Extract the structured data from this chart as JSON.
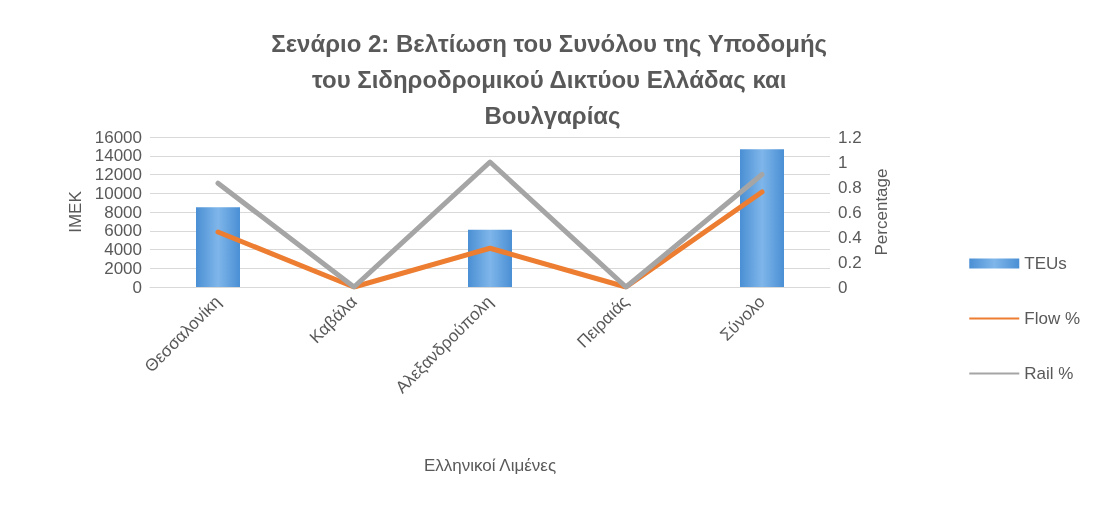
{
  "chart_data": {
    "type": "bar",
    "title": "Σενάριο 2: Βελτίωση του Συνόλου της Υποδομής του Σιδηροδρομικού Δικτύου Ελλάδας και Βουλγαρίας",
    "xlabel": "Ελληνικοί Λιμένες",
    "ylabel": "ΙΜΕΚ",
    "y2label": "Percentage",
    "categories": [
      "Θεσσαλονίκη",
      "Καβάλα",
      "Αλεξανδρούπολη",
      "Πειραιάς",
      "Σύνολο"
    ],
    "series": [
      {
        "name": "TEUs",
        "color": "#4a8fd4",
        "values": [
          8500,
          0,
          6100,
          0,
          14700
        ]
      },
      {
        "name": "Flow %",
        "type": "line",
        "axis": "y2",
        "color": "#ed7d31",
        "values": [
          0.44,
          0,
          0.31,
          0,
          0.76
        ]
      },
      {
        "name": "Rail %",
        "type": "line",
        "axis": "y2",
        "color": "#a5a5a5",
        "values": [
          0.83,
          0,
          1.0,
          0,
          0.9
        ]
      }
    ],
    "ylim": [
      0,
      16000
    ],
    "yticks": [
      0,
      2000,
      4000,
      6000,
      8000,
      10000,
      12000,
      14000,
      16000
    ],
    "y2lim": [
      0,
      1.2
    ],
    "y2ticks": [
      0,
      0.2,
      0.4,
      0.6,
      0.8,
      1,
      1.2
    ],
    "grid": "y",
    "legend": "right",
    "marker": "none"
  }
}
